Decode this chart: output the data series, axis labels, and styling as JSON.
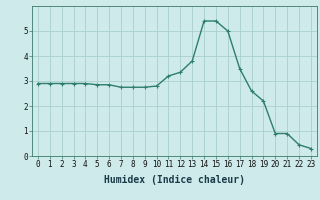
{
  "x": [
    0,
    1,
    2,
    3,
    4,
    5,
    6,
    7,
    8,
    9,
    10,
    11,
    12,
    13,
    14,
    15,
    16,
    17,
    18,
    19,
    20,
    21,
    22,
    23
  ],
  "y": [
    2.9,
    2.9,
    2.9,
    2.9,
    2.9,
    2.85,
    2.85,
    2.75,
    2.75,
    2.75,
    2.8,
    3.2,
    3.35,
    3.8,
    5.4,
    5.4,
    5.0,
    3.5,
    2.6,
    2.2,
    0.9,
    0.9,
    0.45,
    0.3
  ],
  "line_color": "#2e7d6e",
  "marker": "+",
  "marker_size": 3,
  "marker_color": "#2e7d6e",
  "background_color": "#ceeaea",
  "grid_color": "#aacfcf",
  "xlabel": "Humidex (Indice chaleur)",
  "xlabel_fontsize": 7,
  "ylim": [
    0,
    6
  ],
  "xlim": [
    -0.5,
    23.5
  ],
  "yticks": [
    0,
    1,
    2,
    3,
    4,
    5
  ],
  "xticks": [
    0,
    1,
    2,
    3,
    4,
    5,
    6,
    7,
    8,
    9,
    10,
    11,
    12,
    13,
    14,
    15,
    16,
    17,
    18,
    19,
    20,
    21,
    22,
    23
  ],
  "tick_fontsize": 5.5,
  "linewidth": 1.0
}
